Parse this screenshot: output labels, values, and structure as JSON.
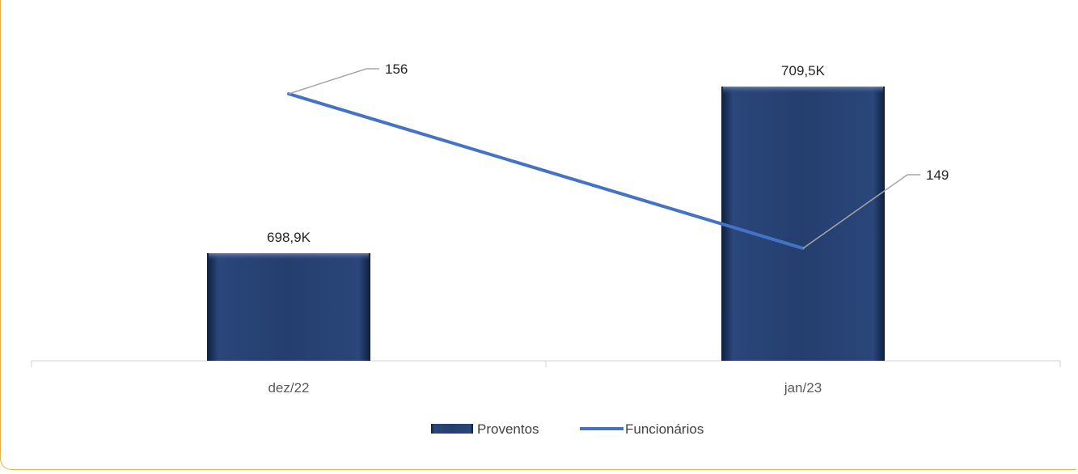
{
  "chart_data": {
    "type": "bar",
    "categories": [
      "dez/22",
      "jan/23"
    ],
    "series": [
      {
        "name": "Proventos",
        "kind": "bar",
        "values": [
          698.9,
          709.5
        ],
        "labels": [
          "698,9K",
          "709,5K"
        ],
        "color": "#243f6e"
      },
      {
        "name": "Funcionários",
        "kind": "line",
        "values": [
          156,
          149
        ],
        "labels": [
          "156",
          "149"
        ],
        "color": "#4472c4"
      }
    ],
    "legend": "bottom-center",
    "grid": false
  }
}
